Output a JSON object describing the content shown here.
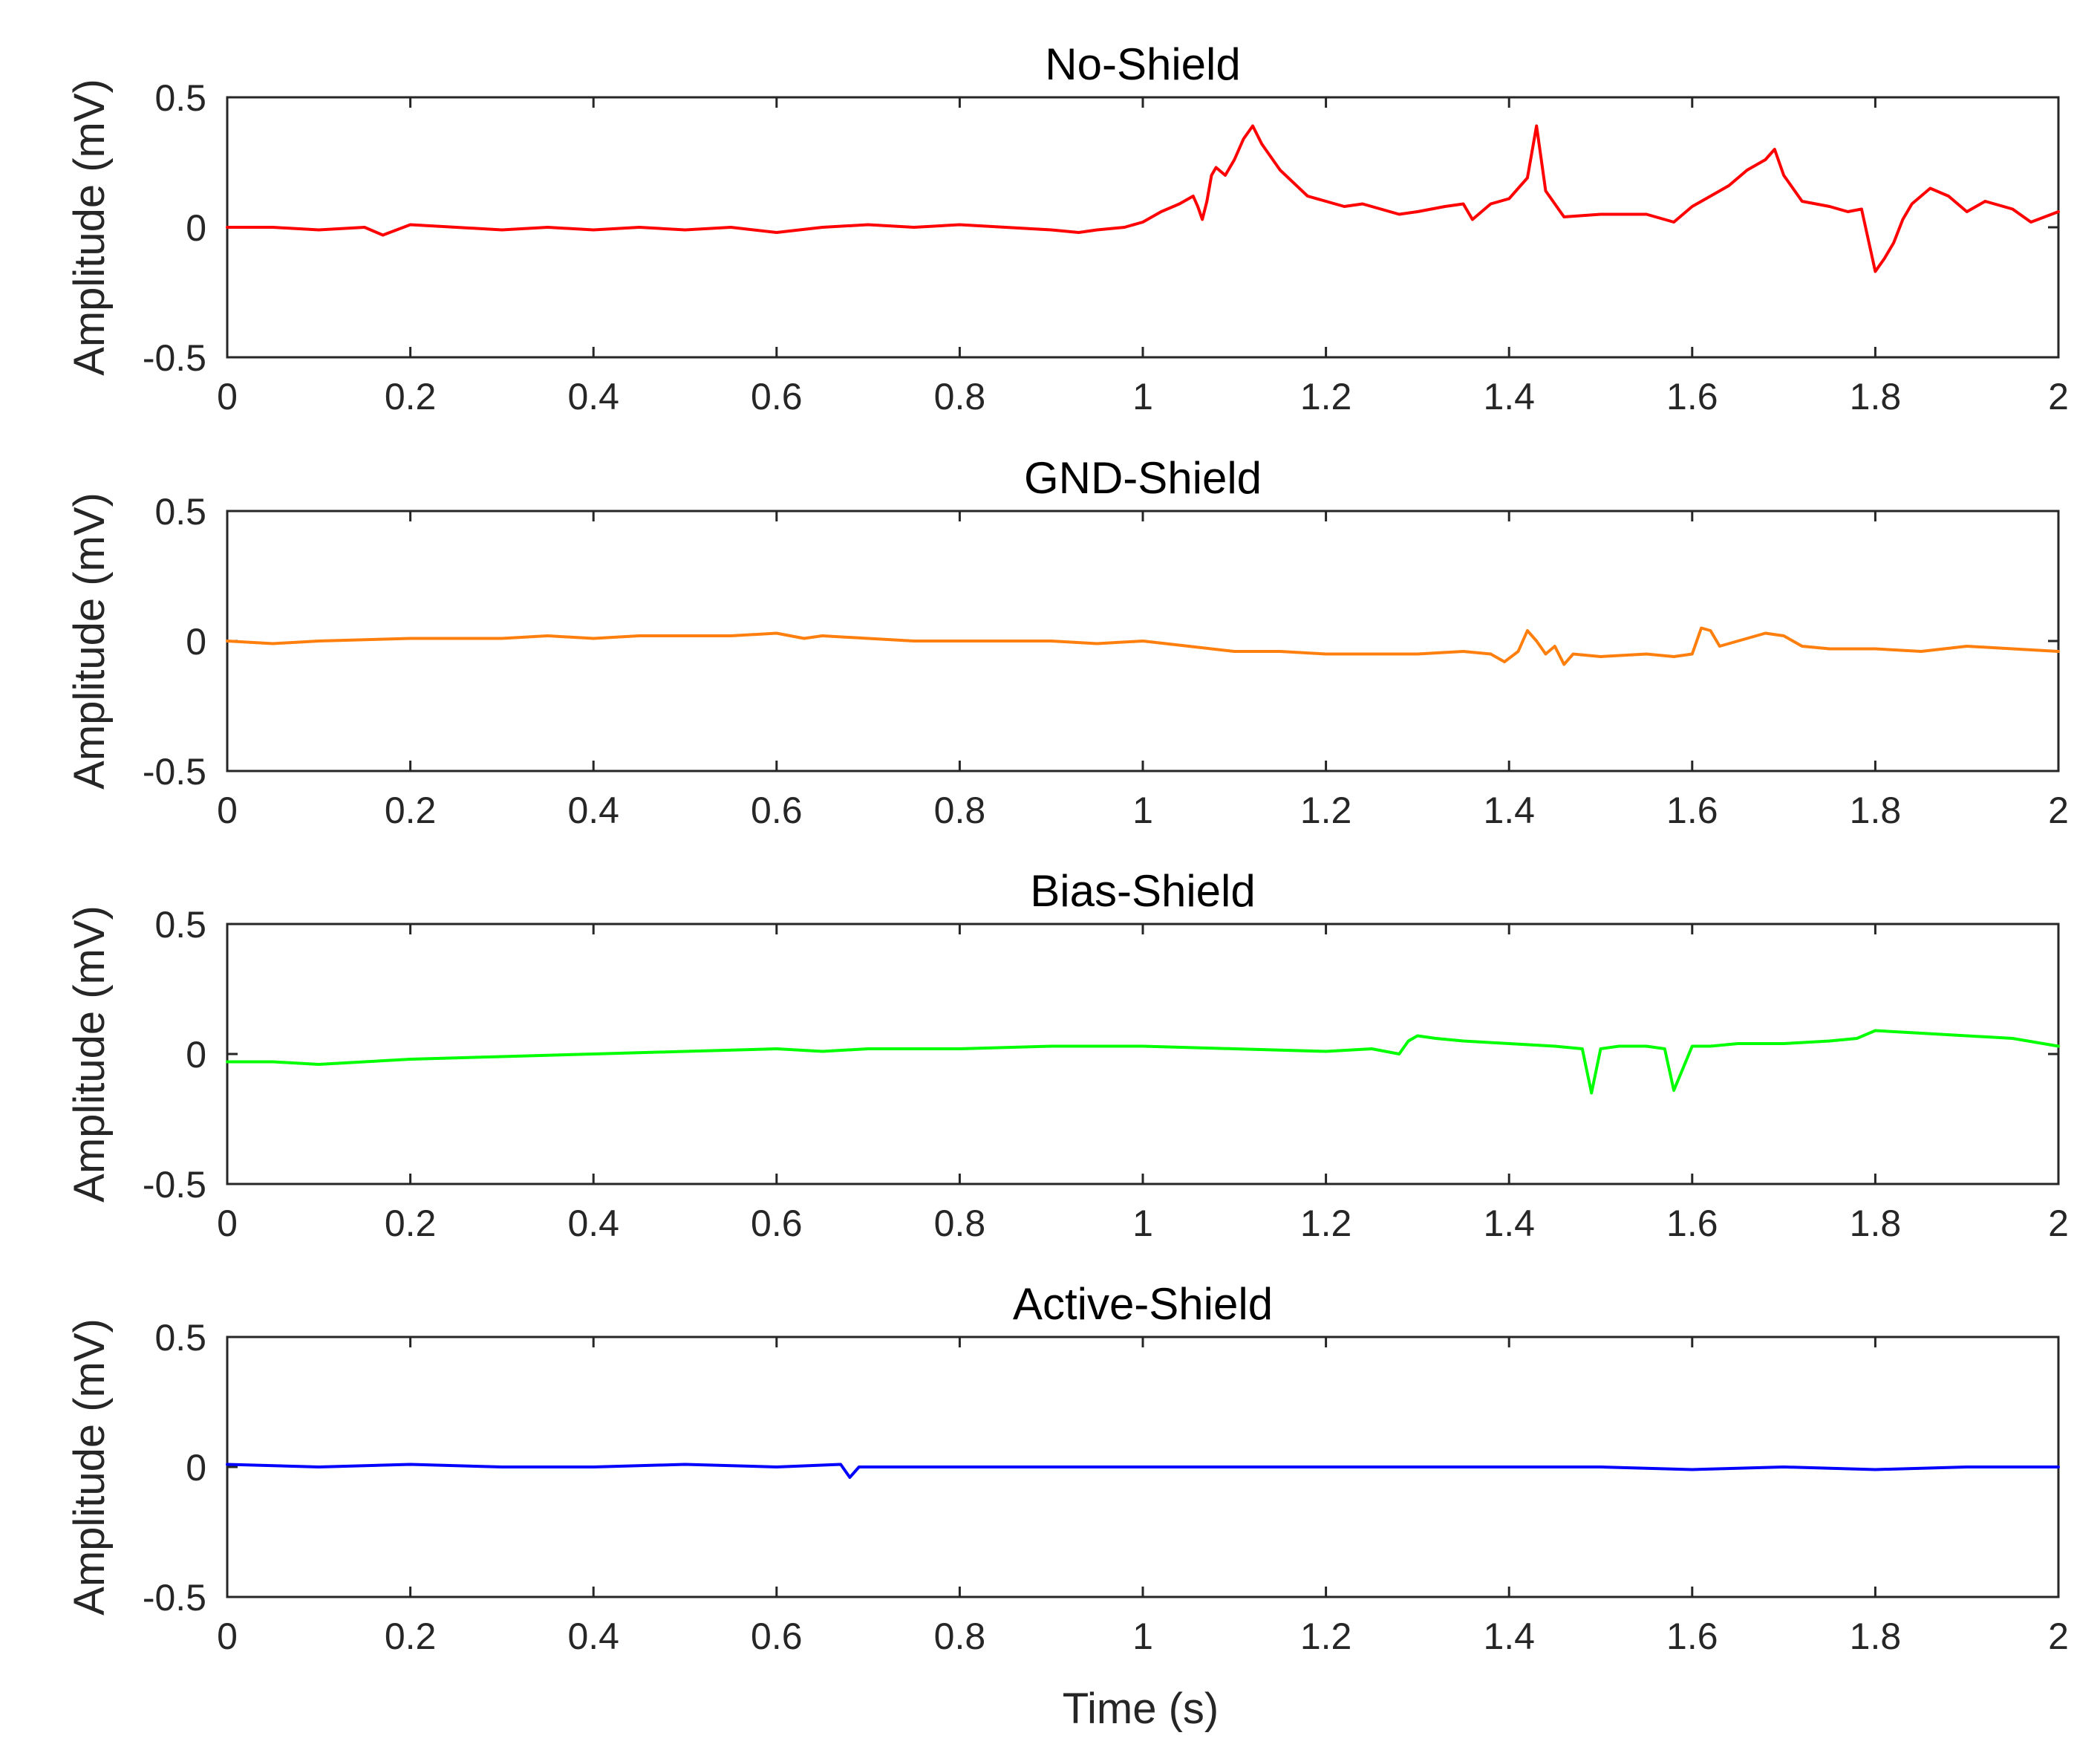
{
  "figure": {
    "xlabel": "Time (s)"
  },
  "chart_data": [
    {
      "type": "line",
      "title": "No-Shield",
      "xlabel": "",
      "ylabel": "Amplitude (mV)",
      "xlim": [
        0,
        2
      ],
      "ylim": [
        -0.5,
        0.5
      ],
      "xticks": [
        "0",
        "0.2",
        "0.4",
        "0.6",
        "0.8",
        "1",
        "1.2",
        "1.4",
        "1.6",
        "1.8",
        "2"
      ],
      "yticks": [
        "0.5",
        "0",
        "-0.5"
      ],
      "color": "#ff0000",
      "series": [
        {
          "name": "No-Shield",
          "x": [
            0,
            0.05,
            0.1,
            0.15,
            0.17,
            0.2,
            0.25,
            0.3,
            0.35,
            0.4,
            0.45,
            0.5,
            0.55,
            0.6,
            0.65,
            0.7,
            0.75,
            0.8,
            0.85,
            0.9,
            0.93,
            0.95,
            0.98,
            1.0,
            1.02,
            1.04,
            1.055,
            1.06,
            1.065,
            1.07,
            1.075,
            1.08,
            1.09,
            1.1,
            1.11,
            1.12,
            1.13,
            1.15,
            1.18,
            1.2,
            1.22,
            1.24,
            1.26,
            1.28,
            1.3,
            1.33,
            1.35,
            1.36,
            1.38,
            1.4,
            1.42,
            1.43,
            1.44,
            1.46,
            1.5,
            1.55,
            1.58,
            1.6,
            1.62,
            1.64,
            1.66,
            1.68,
            1.69,
            1.7,
            1.72,
            1.75,
            1.77,
            1.785,
            1.8,
            1.81,
            1.82,
            1.83,
            1.84,
            1.86,
            1.88,
            1.9,
            1.92,
            1.95,
            1.97,
            2.0
          ],
          "y": [
            0.0,
            0.0,
            -0.01,
            0.0,
            -0.03,
            0.01,
            0.0,
            -0.01,
            0.0,
            -0.01,
            0.0,
            -0.01,
            0.0,
            -0.02,
            0.0,
            0.01,
            0.0,
            0.01,
            0.0,
            -0.01,
            -0.02,
            -0.01,
            0.0,
            0.02,
            0.06,
            0.09,
            0.12,
            0.08,
            0.03,
            0.1,
            0.2,
            0.23,
            0.2,
            0.26,
            0.34,
            0.39,
            0.32,
            0.22,
            0.12,
            0.1,
            0.08,
            0.09,
            0.07,
            0.05,
            0.06,
            0.08,
            0.09,
            0.03,
            0.09,
            0.11,
            0.19,
            0.39,
            0.14,
            0.04,
            0.05,
            0.05,
            0.02,
            0.08,
            0.12,
            0.16,
            0.22,
            0.26,
            0.3,
            0.2,
            0.1,
            0.08,
            0.06,
            0.07,
            -0.17,
            -0.12,
            -0.06,
            0.03,
            0.09,
            0.15,
            0.12,
            0.06,
            0.1,
            0.07,
            0.02,
            0.06
          ]
        }
      ]
    },
    {
      "type": "line",
      "title": "GND-Shield",
      "xlabel": "",
      "ylabel": "Amplitude (mV)",
      "xlim": [
        0,
        2
      ],
      "ylim": [
        -0.5,
        0.5
      ],
      "xticks": [
        "0",
        "0.2",
        "0.4",
        "0.6",
        "0.8",
        "1",
        "1.2",
        "1.4",
        "1.6",
        "1.8",
        "2"
      ],
      "yticks": [
        "0.5",
        "0",
        "-0.5"
      ],
      "color": "#ff7f0e",
      "series": [
        {
          "name": "GND-Shield",
          "x": [
            0,
            0.05,
            0.1,
            0.2,
            0.3,
            0.35,
            0.4,
            0.45,
            0.5,
            0.55,
            0.6,
            0.63,
            0.65,
            0.7,
            0.75,
            0.8,
            0.85,
            0.9,
            0.95,
            1.0,
            1.05,
            1.1,
            1.15,
            1.2,
            1.25,
            1.3,
            1.35,
            1.38,
            1.395,
            1.41,
            1.42,
            1.43,
            1.44,
            1.45,
            1.46,
            1.47,
            1.5,
            1.55,
            1.58,
            1.6,
            1.61,
            1.62,
            1.63,
            1.65,
            1.68,
            1.7,
            1.72,
            1.75,
            1.8,
            1.85,
            1.9,
            1.95,
            2.0
          ],
          "y": [
            0.0,
            -0.01,
            0.0,
            0.01,
            0.01,
            0.02,
            0.01,
            0.02,
            0.02,
            0.02,
            0.03,
            0.01,
            0.02,
            0.01,
            0.0,
            0.0,
            0.0,
            0.0,
            -0.01,
            0.0,
            -0.02,
            -0.04,
            -0.04,
            -0.05,
            -0.05,
            -0.05,
            -0.04,
            -0.05,
            -0.08,
            -0.04,
            0.04,
            0.0,
            -0.05,
            -0.02,
            -0.09,
            -0.05,
            -0.06,
            -0.05,
            -0.06,
            -0.05,
            0.05,
            0.04,
            -0.02,
            0.0,
            0.03,
            0.02,
            -0.02,
            -0.03,
            -0.03,
            -0.04,
            -0.02,
            -0.03,
            -0.04
          ]
        }
      ]
    },
    {
      "type": "line",
      "title": "Bias-Shield",
      "xlabel": "",
      "ylabel": "Amplitude (mV)",
      "xlim": [
        0,
        2
      ],
      "ylim": [
        -0.5,
        0.5
      ],
      "xticks": [
        "0",
        "0.2",
        "0.4",
        "0.6",
        "0.8",
        "1",
        "1.2",
        "1.4",
        "1.6",
        "1.8",
        "2"
      ],
      "yticks": [
        "0.5",
        "0",
        "-0.5"
      ],
      "color": "#00ff00",
      "series": [
        {
          "name": "Bias-Shield",
          "x": [
            0,
            0.05,
            0.1,
            0.15,
            0.2,
            0.3,
            0.4,
            0.5,
            0.6,
            0.65,
            0.7,
            0.8,
            0.9,
            1.0,
            1.1,
            1.2,
            1.25,
            1.28,
            1.29,
            1.3,
            1.32,
            1.35,
            1.4,
            1.45,
            1.48,
            1.49,
            1.5,
            1.52,
            1.55,
            1.57,
            1.58,
            1.6,
            1.62,
            1.65,
            1.7,
            1.75,
            1.78,
            1.8,
            1.85,
            1.9,
            1.95,
            2.0
          ],
          "y": [
            -0.03,
            -0.03,
            -0.04,
            -0.03,
            -0.02,
            -0.01,
            0.0,
            0.01,
            0.02,
            0.01,
            0.02,
            0.02,
            0.03,
            0.03,
            0.02,
            0.01,
            0.02,
            0.0,
            0.05,
            0.07,
            0.06,
            0.05,
            0.04,
            0.03,
            0.02,
            -0.15,
            0.02,
            0.03,
            0.03,
            0.02,
            -0.14,
            0.03,
            0.03,
            0.04,
            0.04,
            0.05,
            0.06,
            0.09,
            0.08,
            0.07,
            0.06,
            0.03
          ]
        }
      ]
    },
    {
      "type": "line",
      "title": "Active-Shield",
      "xlabel": "Time (s)",
      "ylabel": "Amplitude (mV)",
      "xlim": [
        0,
        2
      ],
      "ylim": [
        -0.5,
        0.5
      ],
      "xticks": [
        "0",
        "0.2",
        "0.4",
        "0.6",
        "0.8",
        "1",
        "1.2",
        "1.4",
        "1.6",
        "1.8",
        "2"
      ],
      "yticks": [
        "0.5",
        "0",
        "-0.5"
      ],
      "color": "#0000ff",
      "series": [
        {
          "name": "Active-Shield",
          "x": [
            0,
            0.1,
            0.2,
            0.3,
            0.4,
            0.5,
            0.6,
            0.67,
            0.68,
            0.69,
            0.7,
            0.8,
            0.9,
            1.0,
            1.1,
            1.2,
            1.3,
            1.4,
            1.5,
            1.6,
            1.7,
            1.8,
            1.9,
            2.0
          ],
          "y": [
            0.01,
            0.0,
            0.01,
            0.0,
            0.0,
            0.01,
            0.0,
            0.01,
            -0.04,
            0.0,
            0.0,
            0.0,
            0.0,
            0.0,
            0.0,
            0.0,
            0.0,
            0.0,
            0.0,
            -0.01,
            0.0,
            -0.01,
            0.0,
            0.0
          ]
        }
      ]
    }
  ]
}
